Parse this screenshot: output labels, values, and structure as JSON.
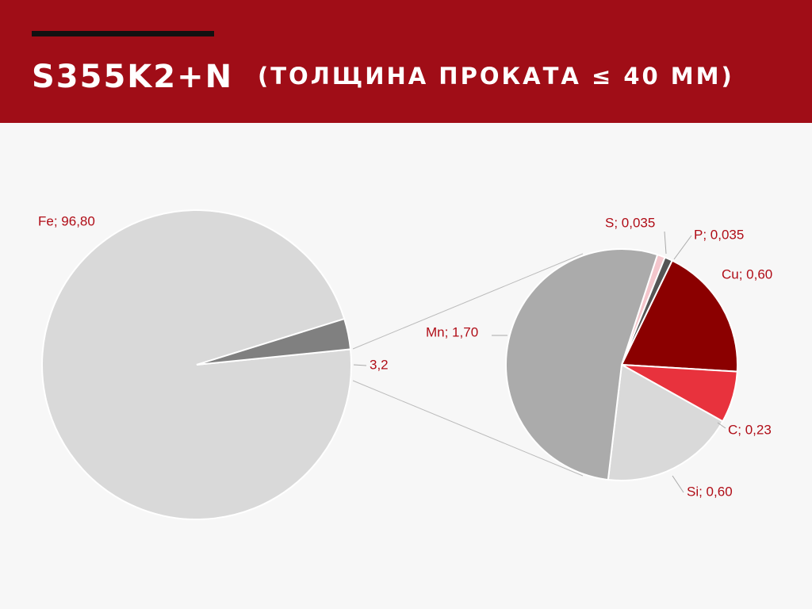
{
  "header": {
    "title": "S355K2+N",
    "subtitle": "(ТОЛЩИНА ПРОКАТА ≤ 40 ММ)"
  },
  "chart_data": [
    {
      "type": "pie",
      "values": [
        96.8,
        3.2
      ],
      "value_labels": [
        "Fe; 96,80",
        "3,2"
      ],
      "colors": [
        "#d9d9d9",
        "#808080"
      ]
    },
    {
      "type": "pie",
      "values": [
        0.035,
        0.035,
        0.6,
        0.23,
        0.6,
        1.7
      ],
      "value_labels": [
        "S; 0,035",
        "P; 0,035",
        "Cu; 0,60",
        "C; 0,23",
        "Si; 0,60",
        "Mn; 1,70"
      ],
      "colors": [
        "#f4c6cc",
        "#555555",
        "#8b0000",
        "#e8323d",
        "#d9d9d9",
        "#ababab"
      ]
    }
  ]
}
